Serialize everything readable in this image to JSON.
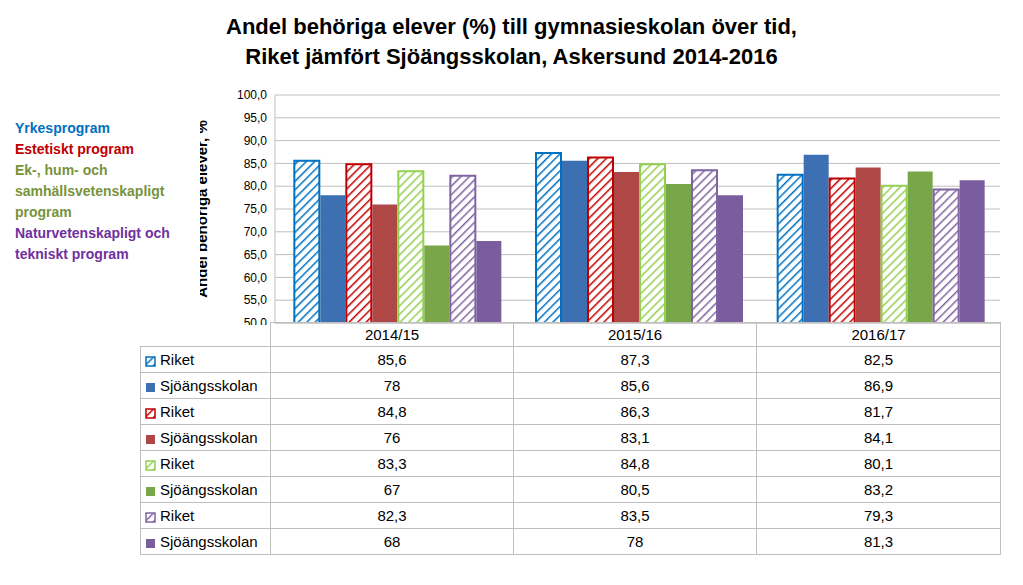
{
  "chart_data": {
    "type": "bar",
    "title": "Andel behöriga elever (%) till gymnasieskolan över tid,\nRiket jämfört Sjöängsskolan, Askersund 2014-2016",
    "y_label": "Andel behöriga elever, %",
    "categories": [
      "2014/15",
      "2015/16",
      "2016/17"
    ],
    "ylim": [
      50,
      100
    ],
    "yticks": [
      {
        "value": 50,
        "label": "50,0"
      },
      {
        "value": 55,
        "label": "55,0"
      },
      {
        "value": 60,
        "label": "60,0"
      },
      {
        "value": 65,
        "label": "65,0"
      },
      {
        "value": 70,
        "label": "70,0"
      },
      {
        "value": 75,
        "label": "75,0"
      },
      {
        "value": 80,
        "label": "80,0"
      },
      {
        "value": 85,
        "label": "85,0"
      },
      {
        "value": 90,
        "label": "90,0"
      },
      {
        "value": 95,
        "label": "95,0"
      },
      {
        "value": 100,
        "label": "100,0"
      }
    ],
    "grid": true,
    "programs": [
      {
        "name": "Yrkesprogram",
        "color": "#0070c0",
        "series": [
          {
            "name": "Riket",
            "color": "#0070c0",
            "values": [
              85.6,
              87.3,
              82.5
            ],
            "value_labels": [
              "85,6",
              "87,3",
              "82,5"
            ]
          },
          {
            "name": "Sjöängsskolan",
            "color": "#3d6fb3",
            "values": [
              78,
              85.6,
              86.9
            ],
            "value_labels": [
              "78",
              "85,6",
              "86,9"
            ]
          }
        ]
      },
      {
        "name": "Estetiskt program",
        "color": "#c00000",
        "series": [
          {
            "name": "Riket",
            "color": "#c00000",
            "values": [
              84.8,
              86.3,
              81.7
            ],
            "value_labels": [
              "84,8",
              "86,3",
              "81,7"
            ]
          },
          {
            "name": "Sjöängsskolan",
            "color": "#b04747",
            "values": [
              76,
              83.1,
              84.1
            ],
            "value_labels": [
              "76",
              "83,1",
              "84,1"
            ]
          }
        ]
      },
      {
        "name": "Ek-, hum- och samhällsvetenskapligt program",
        "color": "#77933c",
        "series": [
          {
            "name": "Riket",
            "color": "#92d050",
            "values": [
              83.3,
              84.8,
              80.1
            ],
            "value_labels": [
              "83,3",
              "84,8",
              "80,1"
            ]
          },
          {
            "name": "Sjöängsskolan",
            "color": "#78a648",
            "values": [
              67,
              80.5,
              83.2
            ],
            "value_labels": [
              "67",
              "80,5",
              "83,2"
            ]
          }
        ]
      },
      {
        "name": "Naturvetenskapligt och tekniskt  program",
        "color": "#7030a0",
        "series": [
          {
            "name": "Riket",
            "color": "#8064a2",
            "values": [
              82.3,
              83.5,
              79.3
            ],
            "value_labels": [
              "82,3",
              "83,5",
              "79,3"
            ]
          },
          {
            "name": "Sjöängsskolan",
            "color": "#7a5d9c",
            "values": [
              68,
              78,
              81.3
            ],
            "value_labels": [
              "68",
              "78",
              "81,3"
            ]
          }
        ]
      }
    ]
  }
}
